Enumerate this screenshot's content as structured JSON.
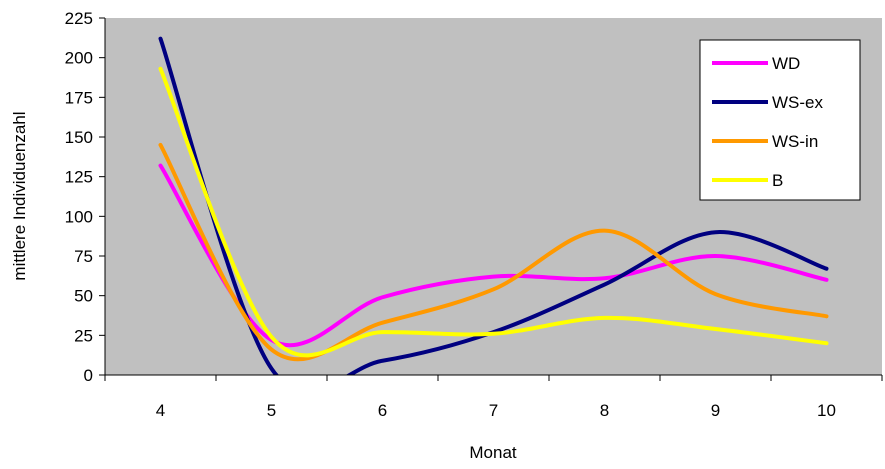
{
  "chart_data": {
    "type": "line",
    "title": "",
    "xlabel": "Monat",
    "ylabel": "mittlere Individuenzahl",
    "categories": [
      "4",
      "5",
      "6",
      "7",
      "8",
      "9",
      "10"
    ],
    "x": [
      4,
      5,
      6,
      7,
      8,
      9,
      10
    ],
    "ylim": [
      0,
      225
    ],
    "yticks": [
      "0",
      "25",
      "50",
      "75",
      "100",
      "125",
      "150",
      "175",
      "200",
      "225"
    ],
    "plot_background": "#c0c0c0",
    "legend_position": "top-right",
    "series": [
      {
        "name": "WD",
        "color": "#ff00ff",
        "values": [
          132,
          22,
          49,
          62,
          61,
          75,
          60
        ]
      },
      {
        "name": "WS-ex",
        "color": "#000080",
        "values": [
          212,
          4,
          9,
          27,
          57,
          90,
          67
        ]
      },
      {
        "name": "WS-in",
        "color": "#ff9900",
        "values": [
          145,
          16,
          33,
          54,
          91,
          51,
          37
        ]
      },
      {
        "name": "B",
        "color": "#ffff00",
        "values": [
          193,
          24,
          27,
          26,
          36,
          29,
          20
        ]
      }
    ]
  }
}
